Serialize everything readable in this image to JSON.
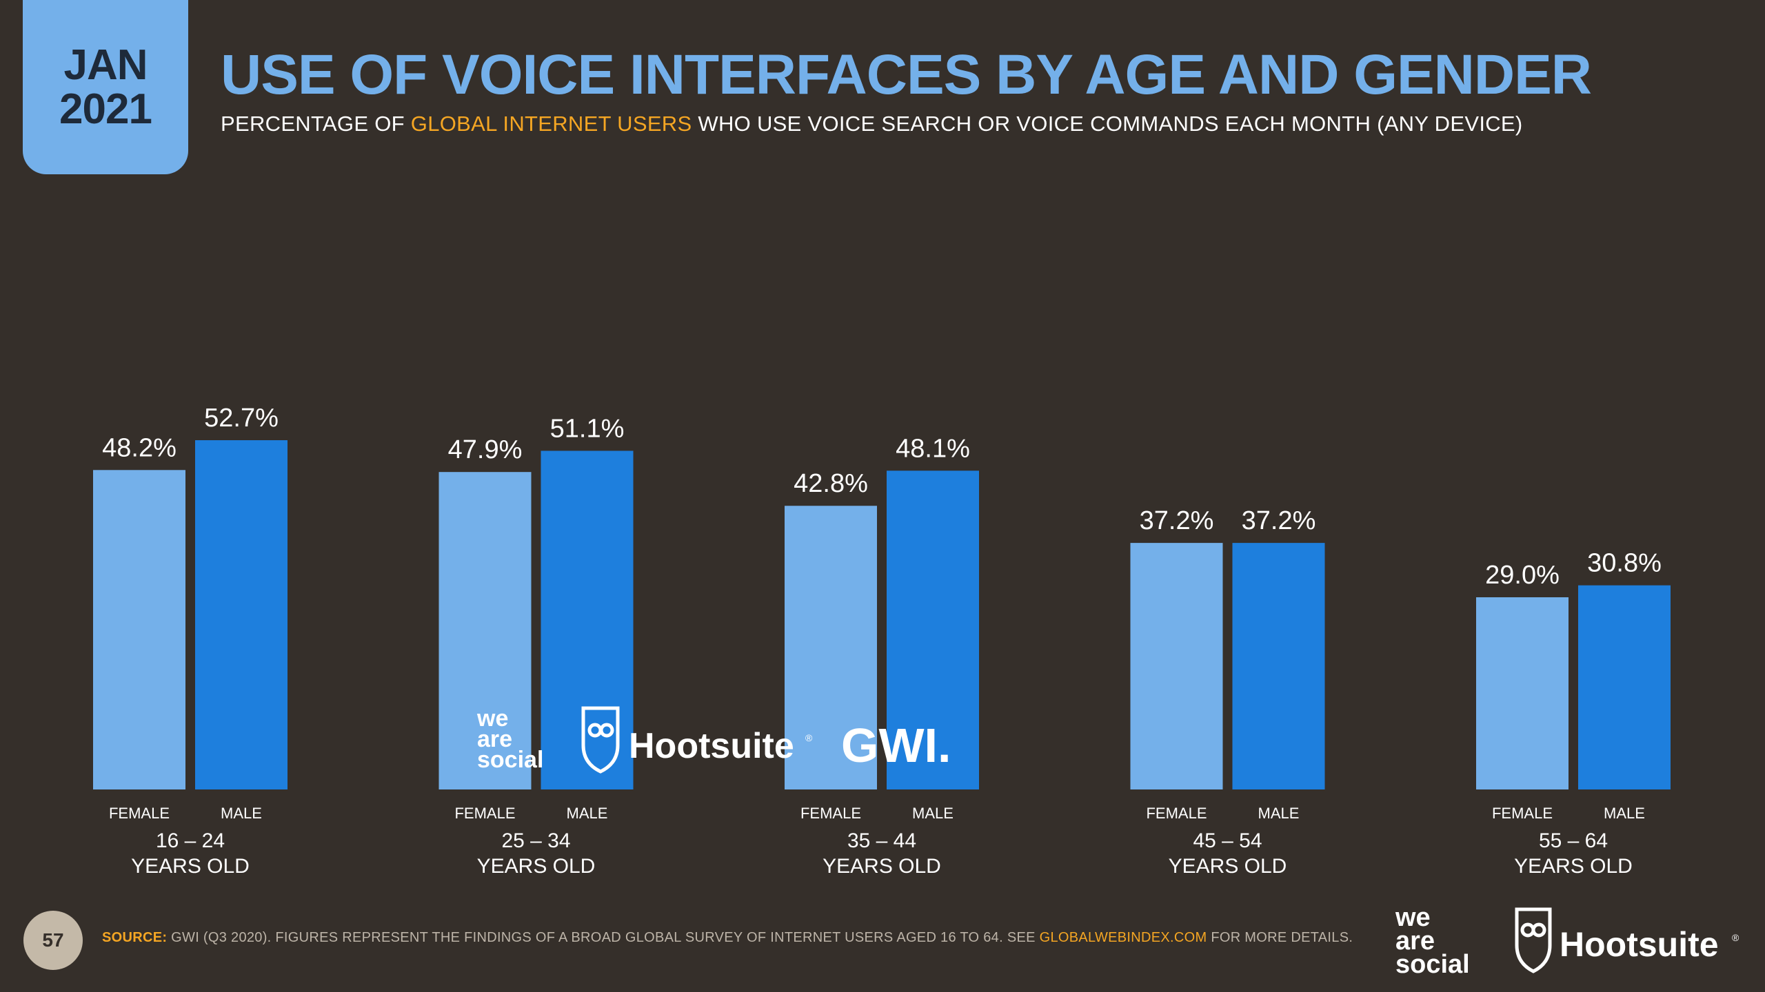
{
  "badge": {
    "month": "JAN",
    "year": "2021"
  },
  "header": {
    "title": "USE OF VOICE INTERFACES BY AGE AND GENDER",
    "subtitle_pre": "PERCENTAGE OF ",
    "subtitle_highlight": "GLOBAL INTERNET USERS",
    "subtitle_post": " WHO USE VOICE SEARCH OR VOICE COMMANDS EACH MONTH (ANY DEVICE)"
  },
  "colors": {
    "female": "#74B0EA",
    "male": "#1E7FDD",
    "accent": "#F5A623",
    "background": "#352F2A"
  },
  "chart_data": {
    "type": "bar",
    "title": "USE OF VOICE INTERFACES BY AGE AND GENDER",
    "categories": [
      {
        "range": "16 – 24",
        "label": "YEARS OLD"
      },
      {
        "range": "25 – 34",
        "label": "YEARS OLD"
      },
      {
        "range": "35 – 44",
        "label": "YEARS OLD"
      },
      {
        "range": "45 – 54",
        "label": "YEARS OLD"
      },
      {
        "range": "55 – 64",
        "label": "YEARS OLD"
      }
    ],
    "series": [
      {
        "name": "FEMALE",
        "values": [
          48.2,
          47.9,
          42.8,
          37.2,
          29.0
        ],
        "labels": [
          "48.2%",
          "47.9%",
          "42.8%",
          "37.2%",
          "29.0%"
        ]
      },
      {
        "name": "MALE",
        "values": [
          52.7,
          51.1,
          48.1,
          37.2,
          30.8
        ],
        "labels": [
          "52.7%",
          "51.1%",
          "48.1%",
          "37.2%",
          "30.8%"
        ]
      }
    ],
    "ylim": [
      0,
      52.7
    ],
    "xlabel": "",
    "ylabel": "",
    "grid": false,
    "legend": "per-bar labels"
  },
  "logos": {
    "was_line1": "we",
    "was_line2": "are",
    "was_line3": "social",
    "hootsuite": "Hootsuite",
    "reg": "®",
    "gwi": "GWI."
  },
  "footer": {
    "page_number": "57",
    "source_label": "SOURCE:",
    "source_text": " GWI (Q3 2020). FIGURES REPRESENT THE FINDINGS OF A BROAD GLOBAL SURVEY OF INTERNET USERS AGED 16 TO 64. SEE ",
    "source_link": "GLOBALWEBINDEX.COM",
    "source_tail": " FOR MORE DETAILS."
  }
}
